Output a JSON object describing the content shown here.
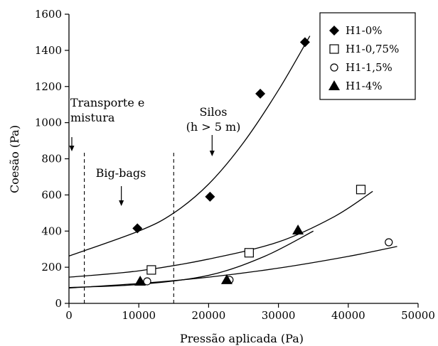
{
  "chart_data": {
    "type": "scatter",
    "xlabel": "Pressão aplicada (Pa)",
    "ylabel": "Coesão (Pa)",
    "xlim": [
      0,
      50000
    ],
    "ylim": [
      0,
      1600
    ],
    "x_ticks": [
      "0",
      "10000",
      "20000",
      "30000",
      "40000",
      "50000"
    ],
    "y_ticks": [
      "0",
      "200",
      "400",
      "600",
      "800",
      "1000",
      "1200",
      "1400",
      "1600"
    ],
    "legend_position": "top-right",
    "series": [
      {
        "name": "H1-0%",
        "marker": "diamond-filled",
        "points": [
          [
            9800,
            415
          ],
          [
            20200,
            590
          ],
          [
            27400,
            1160
          ],
          [
            33800,
            1445
          ]
        ],
        "fit_curve": [
          [
            0,
            262
          ],
          [
            10000,
            400
          ],
          [
            15000,
            500
          ],
          [
            20000,
            660
          ],
          [
            25000,
            890
          ],
          [
            30000,
            1180
          ],
          [
            34500,
            1480
          ]
        ]
      },
      {
        "name": "H1-0,75%",
        "marker": "square-open",
        "points": [
          [
            11800,
            185
          ],
          [
            25800,
            280
          ],
          [
            41800,
            630
          ]
        ],
        "fit_curve": [
          [
            0,
            145
          ],
          [
            10000,
            180
          ],
          [
            20000,
            245
          ],
          [
            30000,
            340
          ],
          [
            38000,
            480
          ],
          [
            43500,
            620
          ]
        ]
      },
      {
        "name": "H1-1,5%",
        "marker": "circle-open",
        "points": [
          [
            11200,
            122
          ],
          [
            23000,
            130
          ],
          [
            45800,
            338
          ]
        ],
        "fit_curve": [
          [
            0,
            85
          ],
          [
            10000,
            110
          ],
          [
            20000,
            145
          ],
          [
            30000,
            195
          ],
          [
            40000,
            260
          ],
          [
            47000,
            315
          ]
        ]
      },
      {
        "name": "H1-4%",
        "marker": "triangle-filled",
        "points": [
          [
            10200,
            122
          ],
          [
            22600,
            130
          ],
          [
            32800,
            405
          ]
        ],
        "fit_curve": [
          [
            0,
            88
          ],
          [
            10000,
            105
          ],
          [
            20000,
            155
          ],
          [
            28000,
            260
          ],
          [
            35000,
            400
          ]
        ]
      }
    ],
    "regions": {
      "dividers_x": [
        2200,
        15000
      ],
      "annotations": [
        {
          "lines": [
            "Transporte e",
            "mistura"
          ],
          "arrow_x": 0
        },
        {
          "lines": [
            "Big-bags"
          ],
          "arrow_x": 7500
        },
        {
          "lines": [
            "Silos",
            "(h > 5 m)"
          ],
          "arrow_x": 20500
        }
      ]
    }
  }
}
